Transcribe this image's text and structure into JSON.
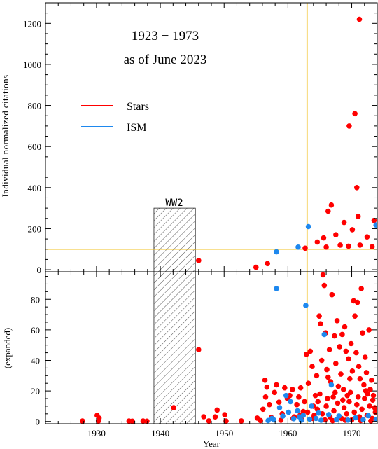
{
  "chart_data": [
    {
      "type": "scatter",
      "panel": "top",
      "title_line1": "1923 − 1973",
      "title_line2": "as of June 2023",
      "xlabel": "",
      "ylabel": "Individual normalized citations",
      "xlim": [
        1922,
        1974
      ],
      "ylim": [
        -10,
        1300
      ],
      "yticks": [
        0,
        200,
        400,
        600,
        800,
        1000,
        1200
      ],
      "annotation": "WW2",
      "legend": {
        "position": "upper-left",
        "entries": [
          {
            "label": "Stars",
            "color": "#ff0000"
          },
          {
            "label": "ISM",
            "color": "#1e88ee"
          }
        ]
      },
      "reference_lines": {
        "vertical_x": 1963,
        "horizontal_y": 100,
        "color": "#f0c020"
      },
      "shaded_region": {
        "x0": 1939,
        "x1": 1945.5,
        "y_top": 300,
        "pattern": "hatch"
      },
      "series": [
        {
          "name": "Stars",
          "color": "#ff0000",
          "points": [
            [
              1971.2,
              1220
            ],
            [
              1970.5,
              760
            ],
            [
              1969.6,
              700
            ],
            [
              1970.8,
              400
            ],
            [
              1966.8,
              315
            ],
            [
              1966.3,
              285
            ],
            [
              1973.5,
              240
            ],
            [
              1971.0,
              260
            ],
            [
              1968.8,
              230
            ],
            [
              1970.1,
              195
            ],
            [
              1965.6,
              155
            ],
            [
              1967.5,
              170
            ],
            [
              1972.4,
              160
            ],
            [
              1964.6,
              135
            ],
            [
              1968.2,
              120
            ],
            [
              1971.3,
              120
            ],
            [
              1962.7,
              105
            ],
            [
              1966.0,
              110
            ],
            [
              1969.5,
              115
            ],
            [
              1973.2,
              112
            ],
            [
              1946.0,
              45
            ],
            [
              1956.8,
              30
            ],
            [
              1955.0,
              12
            ]
          ]
        },
        {
          "name": "ISM",
          "color": "#1e88ee",
          "points": [
            [
              1963.2,
              210
            ],
            [
              1973.8,
              218
            ],
            [
              1958.2,
              87
            ],
            [
              1961.6,
              110
            ]
          ]
        }
      ]
    },
    {
      "type": "scatter",
      "panel": "bottom",
      "xlabel": "Year",
      "ylabel": "(expanded)",
      "xlim": [
        1922,
        1974
      ],
      "ylim": [
        -1.5,
        98
      ],
      "xticks": [
        1930,
        1940,
        1950,
        1960,
        1970
      ],
      "yticks": [
        0,
        20,
        40,
        60,
        80
      ],
      "reference_lines": {
        "vertical_x": 1963,
        "color": "#f0c020"
      },
      "shaded_region": {
        "x0": 1939,
        "x1": 1945.5,
        "pattern": "hatch"
      },
      "series": [
        {
          "name": "Stars",
          "color": "#ff0000",
          "points": [
            [
              1927.8,
              0.3
            ],
            [
              1930.1,
              4.0
            ],
            [
              1930.4,
              2.2
            ],
            [
              1930.3,
              0.4
            ],
            [
              1935.1,
              0.3
            ],
            [
              1935.6,
              0.2
            ],
            [
              1937.3,
              0.3
            ],
            [
              1937.9,
              0.2
            ],
            [
              1942.1,
              9.0
            ],
            [
              1946.0,
              47.0
            ],
            [
              1946.8,
              3.1
            ],
            [
              1947.6,
              0.4
            ],
            [
              1948.6,
              3.0
            ],
            [
              1948.9,
              7.5
            ],
            [
              1950.1,
              4.4
            ],
            [
              1950.3,
              0.3
            ],
            [
              1952.7,
              0.4
            ],
            [
              1955.2,
              2.2
            ],
            [
              1955.7,
              0.6
            ],
            [
              1956.1,
              8.0
            ],
            [
              1956.5,
              16.0
            ],
            [
              1956.7,
              22.5
            ],
            [
              1956.4,
              27.0
            ],
            [
              1957.1,
              11.0
            ],
            [
              1957.4,
              2.6
            ],
            [
              1957.9,
              19.0
            ],
            [
              1958.2,
              24.0
            ],
            [
              1958.6,
              12.6
            ],
            [
              1958.9,
              0.8
            ],
            [
              1959.1,
              5.0
            ],
            [
              1959.5,
              22.0
            ],
            [
              1959.9,
              15.0
            ],
            [
              1960.3,
              17.0
            ],
            [
              1960.7,
              21.0
            ],
            [
              1961.0,
              3.0
            ],
            [
              1961.4,
              11.0
            ],
            [
              1961.7,
              16.0
            ],
            [
              1962.0,
              22.0
            ],
            [
              1962.4,
              6.5
            ],
            [
              1962.6,
              13.0
            ],
            [
              1962.9,
              44.0
            ],
            [
              1963.2,
              25.0
            ],
            [
              1963.5,
              46.0
            ],
            [
              1963.8,
              36.0
            ],
            [
              1964.1,
              4.0
            ],
            [
              1964.3,
              17.0
            ],
            [
              1964.5,
              30.0
            ],
            [
              1964.7,
              13.0
            ],
            [
              1964.9,
              69.0
            ],
            [
              1965.1,
              64.0
            ],
            [
              1965.3,
              40.0
            ],
            [
              1965.5,
              96.0
            ],
            [
              1965.7,
              89.0
            ],
            [
              1965.9,
              58.0
            ],
            [
              1966.1,
              34.0
            ],
            [
              1966.3,
              29.0
            ],
            [
              1966.5,
              47.0
            ],
            [
              1966.7,
              26.0
            ],
            [
              1966.9,
              83.0
            ],
            [
              1967.1,
              16.0
            ],
            [
              1967.3,
              56.0
            ],
            [
              1967.5,
              38.0
            ],
            [
              1967.7,
              66.0
            ],
            [
              1967.9,
              23.0
            ],
            [
              1968.1,
              49.0
            ],
            [
              1968.3,
              31.0
            ],
            [
              1968.5,
              57.0
            ],
            [
              1968.7,
              21.0
            ],
            [
              1968.9,
              62.0
            ],
            [
              1969.1,
              46.0
            ],
            [
              1969.3,
              17.0
            ],
            [
              1969.5,
              41.0
            ],
            [
              1969.7,
              28.0
            ],
            [
              1969.9,
              51.0
            ],
            [
              1970.1,
              33.0
            ],
            [
              1970.3,
              79.0
            ],
            [
              1970.5,
              69.0
            ],
            [
              1970.7,
              45.0
            ],
            [
              1970.9,
              78.0
            ],
            [
              1971.1,
              36.0
            ],
            [
              1971.3,
              28.0
            ],
            [
              1971.5,
              87.0
            ],
            [
              1971.7,
              58.0
            ],
            [
              1971.9,
              24.0
            ],
            [
              1972.1,
              42.0
            ],
            [
              1972.3,
              32.0
            ],
            [
              1972.5,
              18.0
            ],
            [
              1972.7,
              60.0
            ],
            [
              1972.9,
              21.0
            ],
            [
              1973.1,
              27.0
            ],
            [
              1973.3,
              14.0
            ],
            [
              1973.6,
              9.0
            ],
            [
              1960.8,
              2.0
            ],
            [
              1961.9,
              4.0
            ],
            [
              1962.2,
              1.0
            ],
            [
              1963.1,
              6.0
            ],
            [
              1963.9,
              2.0
            ],
            [
              1964.6,
              8.0
            ],
            [
              1965.4,
              5.0
            ],
            [
              1966.0,
              10.0
            ],
            [
              1966.6,
              3.0
            ],
            [
              1967.2,
              7.0
            ],
            [
              1967.8,
              12.0
            ],
            [
              1968.4,
              2.0
            ],
            [
              1968.8,
              9.0
            ],
            [
              1969.2,
              5.0
            ],
            [
              1969.6,
              13.0
            ],
            [
              1970.0,
              1.0
            ],
            [
              1970.4,
              6.0
            ],
            [
              1970.8,
              11.0
            ],
            [
              1971.2,
              3.0
            ],
            [
              1971.6,
              8.0
            ],
            [
              1972.0,
              15.0
            ],
            [
              1972.4,
              4.0
            ],
            [
              1972.8,
              10.0
            ],
            [
              1973.2,
              2.0
            ],
            [
              1973.7,
              6.0
            ],
            [
              1965.0,
              18.0
            ],
            [
              1966.2,
              15.0
            ],
            [
              1967.4,
              19.0
            ],
            [
              1968.6,
              14.0
            ],
            [
              1969.8,
              19.0
            ],
            [
              1971.0,
              16.0
            ],
            [
              1972.2,
              20.0
            ],
            [
              1973.4,
              17.0
            ],
            [
              1964.0,
              10.0
            ],
            [
              1965.8,
              1.0
            ],
            [
              1967.0,
              0.5
            ],
            [
              1969.0,
              0.8
            ],
            [
              1971.4,
              0.6
            ],
            [
              1973.0,
              0.4
            ]
          ]
        },
        {
          "name": "ISM",
          "color": "#1e88ee",
          "points": [
            [
              1958.2,
              87.0
            ],
            [
              1962.8,
              76.0
            ],
            [
              1965.7,
              57.0
            ],
            [
              1966.8,
              24.0
            ],
            [
              1959.7,
              17.0
            ],
            [
              1960.4,
              13.0
            ],
            [
              1958.7,
              9.0
            ],
            [
              1961.5,
              7.0
            ],
            [
              1962.4,
              4.0
            ],
            [
              1963.7,
              10.0
            ],
            [
              1964.4,
              2.0
            ],
            [
              1957.8,
              1.0
            ],
            [
              1959.2,
              3.5
            ],
            [
              1960.1,
              6.0
            ],
            [
              1960.9,
              1.8
            ],
            [
              1961.8,
              3.0
            ],
            [
              1962.1,
              0.8
            ],
            [
              1963.4,
              1.5
            ],
            [
              1964.8,
              5.5
            ],
            [
              1965.2,
              0.8
            ],
            [
              1966.4,
              4.5
            ],
            [
              1967.6,
              1.2
            ],
            [
              1968.0,
              3.6
            ],
            [
              1969.4,
              0.9
            ],
            [
              1970.6,
              2.4
            ],
            [
              1971.8,
              1.1
            ],
            [
              1972.6,
              3.8
            ],
            [
              1973.8,
              1.4
            ],
            [
              1956.9,
              0.6
            ],
            [
              1957.5,
              2.0
            ]
          ]
        }
      ]
    }
  ]
}
